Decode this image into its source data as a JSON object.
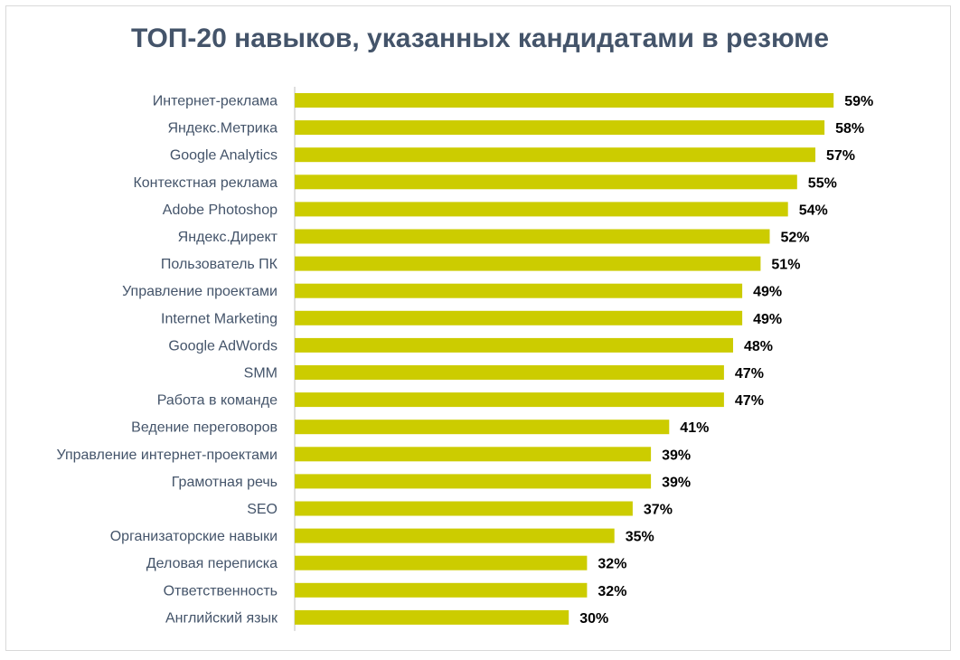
{
  "chart_data": {
    "type": "bar",
    "orientation": "horizontal",
    "title": "ТОП-20 навыков, указанных кандидатами в резюме",
    "categories": [
      "Интернет-реклама",
      "Яндекс.Метрика",
      "Google Analytics",
      "Контекстная реклама",
      "Adobe Photoshop",
      "Яндекс.Директ",
      "Пользователь ПК",
      "Управление проектами",
      "Internet Marketing",
      "Google AdWords",
      "SMM",
      "Работа в команде",
      "Ведение переговоров",
      "Управление интернет-проектами",
      "Грамотная речь",
      "SEO",
      "Организаторские навыки",
      "Деловая переписка",
      "Ответственность",
      "Английский язык"
    ],
    "values": [
      59,
      58,
      57,
      55,
      54,
      52,
      51,
      49,
      49,
      48,
      47,
      47,
      41,
      39,
      39,
      37,
      35,
      32,
      32,
      30
    ],
    "value_labels": [
      "59%",
      "58%",
      "57%",
      "55%",
      "54%",
      "52%",
      "51%",
      "49%",
      "49%",
      "48%",
      "47%",
      "47%",
      "41%",
      "39%",
      "39%",
      "37%",
      "35%",
      "32%",
      "32%",
      "30%"
    ],
    "unit": "%",
    "xlim": [
      0,
      60
    ],
    "grid": false,
    "bar_color": "#cccc00",
    "title_color": "#44546a",
    "label_color": "#44546a"
  }
}
